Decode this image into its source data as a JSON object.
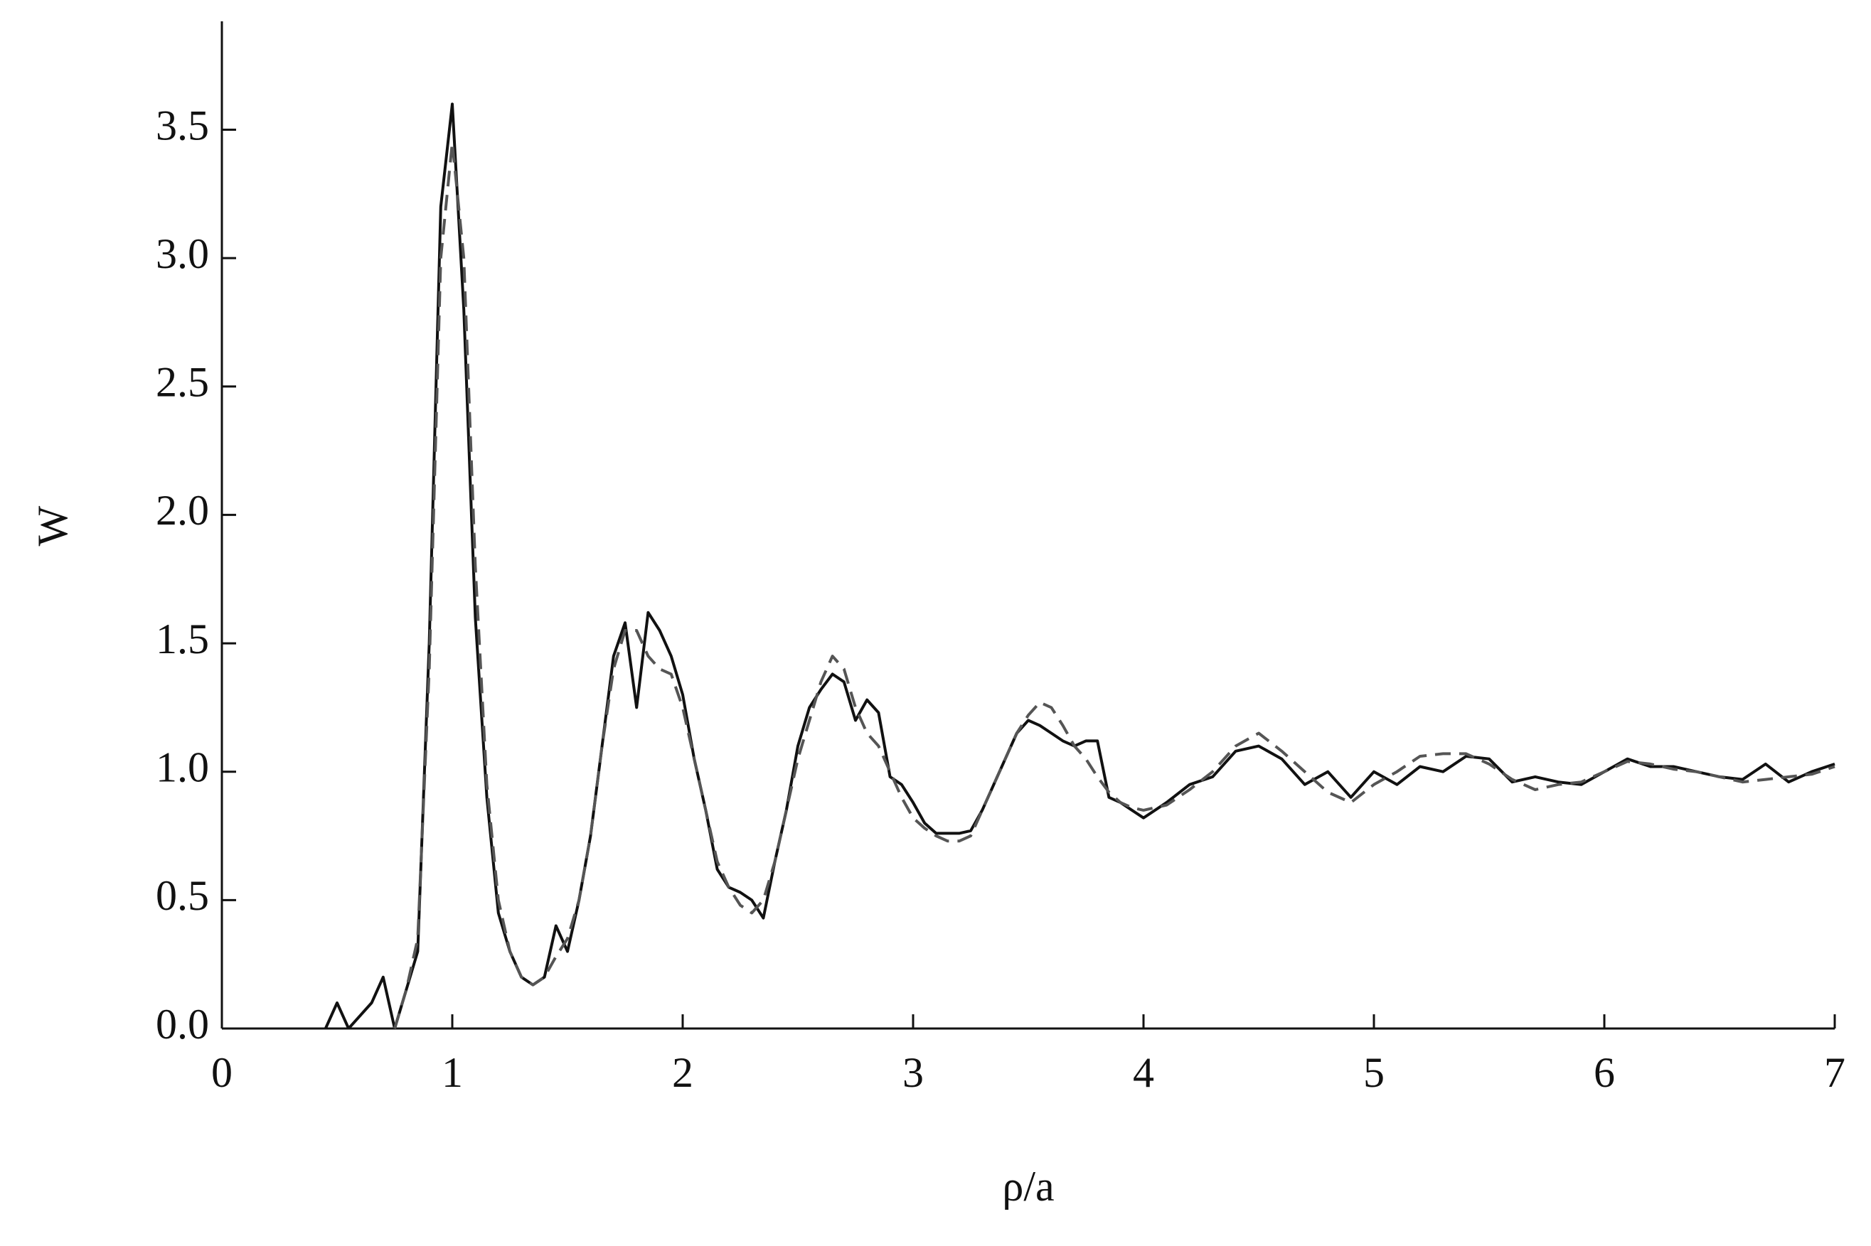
{
  "chart_data": {
    "type": "line",
    "xlabel": "ρ/a",
    "ylabel": "W",
    "x": [
      0.45,
      0.5,
      0.55,
      0.6,
      0.65,
      0.7,
      0.75,
      0.8,
      0.85,
      0.9,
      0.95,
      1.0,
      1.05,
      1.1,
      1.15,
      1.2,
      1.25,
      1.3,
      1.35,
      1.4,
      1.45,
      1.5,
      1.55,
      1.6,
      1.65,
      1.7,
      1.75,
      1.8,
      1.85,
      1.9,
      1.95,
      2.0,
      2.05,
      2.1,
      2.15,
      2.2,
      2.25,
      2.3,
      2.35,
      2.4,
      2.45,
      2.5,
      2.55,
      2.6,
      2.65,
      2.7,
      2.75,
      2.8,
      2.85,
      2.9,
      2.95,
      3.0,
      3.05,
      3.1,
      3.15,
      3.2,
      3.25,
      3.3,
      3.35,
      3.4,
      3.45,
      3.5,
      3.55,
      3.6,
      3.65,
      3.7,
      3.75,
      3.8,
      3.85,
      3.9,
      3.95,
      4.0,
      4.1,
      4.2,
      4.3,
      4.4,
      4.5,
      4.6,
      4.7,
      4.8,
      4.9,
      5.0,
      5.1,
      5.2,
      5.3,
      5.4,
      5.5,
      5.6,
      5.7,
      5.8,
      5.9,
      6.0,
      6.1,
      6.2,
      6.3,
      6.4,
      6.5,
      6.6,
      6.7,
      6.8,
      6.9,
      7.0
    ],
    "series": [
      {
        "color": "#111111",
        "dash": false,
        "values": [
          0,
          0.1,
          0,
          0.05,
          0.1,
          0.2,
          0,
          0.15,
          0.3,
          1.5,
          3.2,
          3.6,
          2.8,
          1.6,
          0.9,
          0.45,
          0.3,
          0.2,
          0.17,
          0.2,
          0.4,
          0.3,
          0.5,
          0.75,
          1.1,
          1.45,
          1.58,
          1.25,
          1.62,
          1.55,
          1.45,
          1.3,
          1.05,
          0.85,
          0.62,
          0.55,
          0.53,
          0.5,
          0.43,
          0.65,
          0.85,
          1.1,
          1.25,
          1.32,
          1.38,
          1.35,
          1.2,
          1.28,
          1.23,
          0.98,
          0.95,
          0.88,
          0.8,
          0.76,
          0.76,
          0.76,
          0.77,
          0.85,
          0.95,
          1.05,
          1.15,
          1.2,
          1.18,
          1.15,
          1.12,
          1.1,
          1.12,
          1.12,
          0.9,
          0.88,
          0.85,
          0.82,
          0.88,
          0.95,
          0.98,
          1.08,
          1.1,
          1.05,
          0.95,
          1.0,
          0.9,
          1.0,
          0.95,
          1.02,
          1.0,
          1.06,
          1.05,
          0.96,
          0.98,
          0.96,
          0.95,
          1.0,
          1.05,
          1.02,
          1.02,
          1.0,
          0.98,
          0.97,
          1.03,
          0.96,
          1.0,
          1.03
        ]
      },
      {
        "color": "#555555",
        "dash": true,
        "values": [
          null,
          null,
          null,
          null,
          null,
          null,
          0,
          0.15,
          0.35,
          1.4,
          3.0,
          3.45,
          3.0,
          1.8,
          0.95,
          0.5,
          0.3,
          0.2,
          0.17,
          0.2,
          0.28,
          0.35,
          0.5,
          0.75,
          1.1,
          1.4,
          1.55,
          1.55,
          1.45,
          1.4,
          1.38,
          1.25,
          1.05,
          0.85,
          0.65,
          0.55,
          0.48,
          0.45,
          0.5,
          0.65,
          0.85,
          1.05,
          1.2,
          1.35,
          1.45,
          1.4,
          1.25,
          1.15,
          1.1,
          1.0,
          0.9,
          0.82,
          0.78,
          0.75,
          0.73,
          0.73,
          0.75,
          0.85,
          0.95,
          1.05,
          1.15,
          1.22,
          1.27,
          1.25,
          1.18,
          1.1,
          1.05,
          0.98,
          0.92,
          0.88,
          0.86,
          0.85,
          0.87,
          0.93,
          1.0,
          1.1,
          1.15,
          1.08,
          1.0,
          0.92,
          0.88,
          0.95,
          1.0,
          1.06,
          1.07,
          1.07,
          1.03,
          0.97,
          0.93,
          0.95,
          0.96,
          1.0,
          1.04,
          1.03,
          1.01,
          1.0,
          0.98,
          0.96,
          0.97,
          0.98,
          0.99,
          1.02
        ]
      }
    ],
    "xlim": [
      0,
      7
    ],
    "xticks": [
      0,
      1,
      2,
      3,
      4,
      5,
      6,
      7
    ],
    "ylim": [
      0,
      3.9
    ],
    "yticks": [
      {
        "value": 0,
        "label": "0.0"
      },
      0.5,
      {
        "value": 1,
        "label": "1.0"
      },
      1.5,
      {
        "value": 2,
        "label": "2.0"
      },
      2.5,
      {
        "value": 3,
        "label": "3.0"
      },
      3.5
    ],
    "grid": false
  }
}
